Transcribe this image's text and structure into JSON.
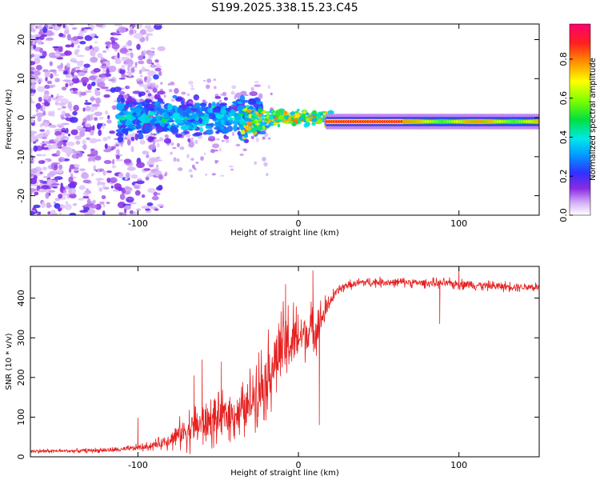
{
  "title": "S199.2025.338.15.23.C45",
  "chart_data": [
    {
      "type": "heatmap",
      "name": "spectrogram",
      "xlabel": "Height of straight line (km)",
      "ylabel": "Frequency (Hz)",
      "xlim": [
        -167,
        150
      ],
      "ylim": [
        -25,
        24
      ],
      "xticks": [
        -100,
        0,
        100
      ],
      "yticks": [
        -20,
        -10,
        0,
        10,
        20
      ],
      "colorbar": {
        "label": "Normalized spectral amplitude",
        "range": [
          0.0,
          0.98
        ],
        "ticks": [
          "0.0",
          "0.2",
          "0.4",
          "0.6",
          "0.8"
        ],
        "tick_values": [
          0.0,
          0.2,
          0.4,
          0.6,
          0.8
        ]
      },
      "features": [
        {
          "region": "noise-scatter",
          "x_range": [
            -167,
            -88
          ],
          "freq_range": [
            -25,
            24
          ],
          "amplitude": [
            0.05,
            0.25
          ]
        },
        {
          "region": "broken-signal",
          "x_range": [
            -110,
            -25
          ],
          "freq_range": [
            -8,
            6
          ],
          "amplitude": [
            0.15,
            0.45
          ]
        },
        {
          "region": "converging-trace",
          "x_range": [
            -35,
            20
          ],
          "freq_range": [
            -5,
            5
          ],
          "amplitude": [
            0.3,
            0.9
          ]
        },
        {
          "region": "steady-peak",
          "x_range": [
            20,
            65
          ],
          "freq": -1,
          "amplitude": 0.95
        },
        {
          "region": "steady-tail",
          "x_range": [
            65,
            150
          ],
          "freq": -1,
          "amplitude": [
            0.5,
            0.85
          ]
        }
      ]
    },
    {
      "type": "line",
      "name": "snr",
      "xlabel": "Height of straight line (km)",
      "ylabel": "SNR (10 * v/v)",
      "xlim": [
        -167,
        150
      ],
      "ylim": [
        0,
        480
      ],
      "xticks": [
        -100,
        0,
        100
      ],
      "yticks": [
        0,
        100,
        200,
        300,
        400
      ],
      "color": "#e62020",
      "series": [
        {
          "name": "SNR",
          "x": [
            -167,
            -140,
            -110,
            -95,
            -85,
            -75,
            -68,
            -58,
            -50,
            -40,
            -32,
            -28,
            -20,
            -12,
            -8,
            -4,
            0,
            4,
            8,
            12,
            16,
            20,
            25,
            30,
            40,
            60,
            80,
            100,
            120,
            150
          ],
          "mean": [
            14,
            15,
            18,
            25,
            35,
            55,
            70,
            85,
            95,
            110,
            120,
            160,
            200,
            260,
            280,
            290,
            300,
            310,
            320,
            330,
            360,
            395,
            420,
            432,
            440,
            440,
            438,
            436,
            430,
            428
          ],
          "amplitude": [
            8,
            8,
            10,
            15,
            25,
            55,
            80,
            90,
            90,
            95,
            110,
            130,
            140,
            150,
            160,
            150,
            120,
            100,
            100,
            90,
            60,
            30,
            20,
            18,
            18,
            18,
            18,
            20,
            18,
            18
          ]
        }
      ],
      "notable_points": [
        {
          "x": -100,
          "y": 98
        },
        {
          "x": -65,
          "y": 205
        },
        {
          "x": -60,
          "y": 245
        },
        {
          "x": -48,
          "y": 240
        },
        {
          "x": -12,
          "y": 320
        },
        {
          "x": -8,
          "y": 435
        },
        {
          "x": 9,
          "y": 470
        },
        {
          "x": 13,
          "y": 80
        },
        {
          "x": 88,
          "y": 335
        },
        {
          "x": 100,
          "y": 478
        }
      ]
    }
  ]
}
